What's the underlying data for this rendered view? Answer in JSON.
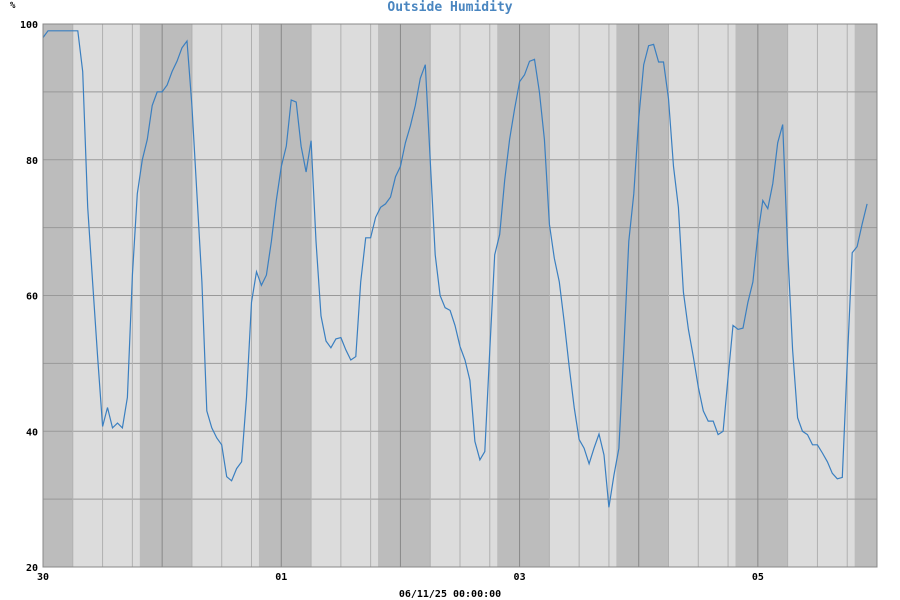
{
  "chart_data": {
    "type": "line",
    "title": "Outside Humidity",
    "ylabel": "%",
    "footer": "06/11/25 00:00:00",
    "ylim": [
      20,
      100
    ],
    "xlim": [
      0,
      168
    ],
    "y_ticks": [
      20,
      40,
      60,
      80,
      100
    ],
    "x_tick_labels": [
      {
        "x": 0,
        "label": "30"
      },
      {
        "x": 48,
        "label": "01"
      },
      {
        "x": 96,
        "label": "03"
      },
      {
        "x": 144,
        "label": "05"
      }
    ],
    "night_bands": [
      [
        0,
        6
      ],
      [
        19.5,
        30
      ],
      [
        43.5,
        54
      ],
      [
        67.5,
        78
      ],
      [
        91.5,
        102
      ],
      [
        115.5,
        126
      ],
      [
        139.5,
        150
      ],
      [
        163.5,
        168
      ]
    ],
    "grid": true,
    "x_unit": "hours since 30th 00:00",
    "series": [
      {
        "name": "",
        "color": "#3a7fc0",
        "points": [
          [
            0,
            98
          ],
          [
            1,
            99
          ],
          [
            2,
            99
          ],
          [
            3,
            99
          ],
          [
            4,
            99
          ],
          [
            5,
            99
          ],
          [
            6,
            99
          ],
          [
            7,
            99
          ],
          [
            8,
            93
          ],
          [
            9,
            73
          ],
          [
            10,
            62
          ],
          [
            11,
            51
          ],
          [
            12,
            40.7
          ],
          [
            13,
            43.5
          ],
          [
            14,
            40.5
          ],
          [
            15,
            41.2
          ],
          [
            16,
            40.5
          ],
          [
            17,
            45
          ],
          [
            18,
            63
          ],
          [
            19,
            75
          ],
          [
            20,
            80
          ],
          [
            21,
            83
          ],
          [
            22,
            88
          ],
          [
            23,
            90
          ],
          [
            24,
            90
          ],
          [
            25,
            91
          ],
          [
            26,
            93
          ],
          [
            27,
            94.5
          ],
          [
            28,
            96.5
          ],
          [
            29,
            97.5
          ],
          [
            30,
            88
          ],
          [
            31,
            75
          ],
          [
            32,
            62
          ],
          [
            33,
            43
          ],
          [
            34,
            40.5
          ],
          [
            35,
            39
          ],
          [
            36,
            38
          ],
          [
            37,
            33.3
          ],
          [
            38,
            32.7
          ],
          [
            39,
            34.5
          ],
          [
            40,
            35.5
          ],
          [
            41,
            45
          ],
          [
            42,
            59
          ],
          [
            43,
            63.5
          ],
          [
            44,
            61.5
          ],
          [
            45,
            63
          ],
          [
            46,
            68
          ],
          [
            47,
            74
          ],
          [
            48,
            79
          ],
          [
            49,
            82
          ],
          [
            50,
            88.8
          ],
          [
            51,
            88.5
          ],
          [
            52,
            82
          ],
          [
            53,
            78.2
          ],
          [
            54,
            82.8
          ],
          [
            55,
            68
          ],
          [
            56,
            57
          ],
          [
            57,
            53.3
          ],
          [
            58,
            52.3
          ],
          [
            59,
            53.6
          ],
          [
            60,
            53.8
          ],
          [
            61,
            52
          ],
          [
            62,
            50.5
          ],
          [
            63,
            51
          ],
          [
            64,
            62
          ],
          [
            65,
            68.5
          ],
          [
            66,
            68.5
          ],
          [
            67,
            71.5
          ],
          [
            68,
            73
          ],
          [
            69,
            73.5
          ],
          [
            70,
            74.5
          ],
          [
            71,
            77.5
          ],
          [
            72,
            79
          ],
          [
            73,
            82.5
          ],
          [
            74,
            85
          ],
          [
            75,
            88
          ],
          [
            76,
            92
          ],
          [
            77,
            94
          ],
          [
            78,
            80
          ],
          [
            79,
            66
          ],
          [
            80,
            60
          ],
          [
            81,
            58.2
          ],
          [
            82,
            57.8
          ],
          [
            83,
            55.6
          ],
          [
            84,
            52.5
          ],
          [
            85,
            50.5
          ],
          [
            86,
            47.5
          ],
          [
            87,
            38.5
          ],
          [
            88,
            35.8
          ],
          [
            89,
            37
          ],
          [
            90,
            52
          ],
          [
            91,
            66
          ],
          [
            92,
            69
          ],
          [
            93,
            77
          ],
          [
            94,
            83
          ],
          [
            95,
            87.5
          ],
          [
            96,
            91.5
          ],
          [
            97,
            92.5
          ],
          [
            98,
            94.5
          ],
          [
            99,
            94.8
          ],
          [
            100,
            90
          ],
          [
            101,
            83
          ],
          [
            102,
            70.5
          ],
          [
            103,
            65.5
          ],
          [
            104,
            62
          ],
          [
            105,
            56
          ],
          [
            106,
            49.5
          ],
          [
            107,
            43.5
          ],
          [
            108,
            38.8
          ],
          [
            109,
            37.5
          ],
          [
            110,
            35.2
          ],
          [
            111,
            37.5
          ],
          [
            112,
            39.6
          ],
          [
            113,
            36.5
          ],
          [
            114,
            28.8
          ],
          [
            115,
            33.5
          ],
          [
            116,
            37.5
          ],
          [
            117,
            52
          ],
          [
            118,
            68
          ],
          [
            119,
            75
          ],
          [
            120,
            86
          ],
          [
            121,
            94
          ],
          [
            122,
            96.8
          ],
          [
            123,
            97
          ],
          [
            124,
            94.4
          ],
          [
            125,
            94.4
          ],
          [
            126,
            89
          ],
          [
            127,
            79
          ],
          [
            128,
            73
          ],
          [
            129,
            60.5
          ],
          [
            130,
            55
          ],
          [
            131,
            51
          ],
          [
            132,
            46.5
          ],
          [
            133,
            43
          ],
          [
            134,
            41.5
          ],
          [
            135,
            41.5
          ],
          [
            136,
            39.5
          ],
          [
            137,
            40
          ],
          [
            138,
            48
          ],
          [
            139,
            55.6
          ],
          [
            140,
            55
          ],
          [
            141,
            55.2
          ],
          [
            142,
            59
          ],
          [
            143,
            62
          ],
          [
            144,
            69
          ],
          [
            145,
            74
          ],
          [
            146,
            72.8
          ],
          [
            147,
            76.5
          ],
          [
            148,
            82.5
          ],
          [
            149,
            85.2
          ],
          [
            150,
            67
          ],
          [
            151,
            52
          ],
          [
            152,
            42
          ],
          [
            153,
            40
          ],
          [
            154,
            39.5
          ],
          [
            155,
            38
          ],
          [
            156,
            38
          ],
          [
            157,
            36.8
          ],
          [
            158,
            35.5
          ],
          [
            159,
            33.8
          ],
          [
            160,
            33
          ],
          [
            161,
            33.2
          ],
          [
            162,
            50
          ],
          [
            163,
            66.3
          ],
          [
            164,
            67.2
          ],
          [
            165,
            70.5
          ],
          [
            166,
            73.5
          ]
        ]
      }
    ]
  }
}
